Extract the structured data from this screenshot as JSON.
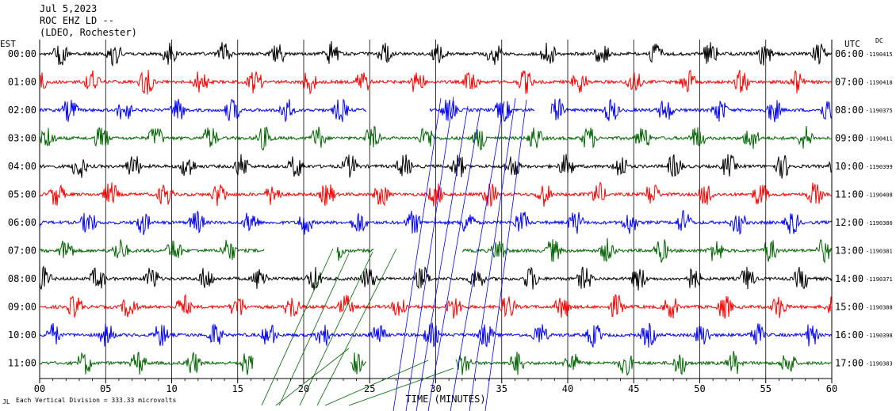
{
  "header": {
    "date": "Jul 5,2023",
    "station": "ROC EHZ LD --",
    "network": "(LDEO, Rochester)"
  },
  "corner_left": "EST",
  "corner_right": "UTC",
  "corner_dc": "DC",
  "footer": {
    "scale_note": "Each Vertical Division = 333.33 microvolts",
    "mark": "JL"
  },
  "chart_data": {
    "type": "line",
    "title": "",
    "xlabel": "TIME (MINUTES)",
    "ylabel": "",
    "xlim": [
      0,
      60
    ],
    "x_ticks": [
      "00",
      "05",
      "10",
      "15",
      "20",
      "25",
      "30",
      "35",
      "40",
      "45",
      "50",
      "55",
      "60"
    ],
    "grid": true,
    "colors": [
      "#000000",
      "#ff0000",
      "#0000ff",
      "#006400"
    ],
    "rows": [
      {
        "est": "00:00",
        "utc": "06:00",
        "dc": "-1190415"
      },
      {
        "est": "01:00",
        "utc": "07:00",
        "dc": "-1190418"
      },
      {
        "est": "02:00",
        "utc": "08:00",
        "dc": "-1190375"
      },
      {
        "est": "03:00",
        "utc": "09:00",
        "dc": "-1190411"
      },
      {
        "est": "04:00",
        "utc": "10:00",
        "dc": "-1190399"
      },
      {
        "est": "05:00",
        "utc": "11:00",
        "dc": "-1190408"
      },
      {
        "est": "06:00",
        "utc": "12:00",
        "dc": "-1190386"
      },
      {
        "est": "07:00",
        "utc": "13:00",
        "dc": "-1190381"
      },
      {
        "est": "08:00",
        "utc": "14:00",
        "dc": "-1190371"
      },
      {
        "est": "09:00",
        "utc": "15:00",
        "dc": "-1190388"
      },
      {
        "est": "10:00",
        "utc": "16:00",
        "dc": "-1190398"
      },
      {
        "est": "11:00",
        "utc": "17:00",
        "dc": "-1190383"
      }
    ]
  }
}
